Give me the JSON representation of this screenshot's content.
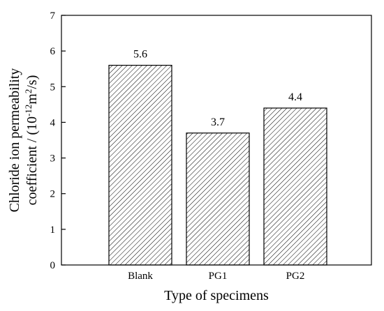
{
  "chart_data": {
    "type": "bar",
    "categories": [
      "Blank",
      "PG1",
      "PG2"
    ],
    "values": [
      5.6,
      3.7,
      4.4
    ],
    "data_labels": [
      "5.6",
      "3.7",
      "4.4"
    ],
    "title": "",
    "xlabel": "Type of specimens",
    "ylabel": {
      "line1": "Chloride ion permeability",
      "line2_pre": "coefficient / (10",
      "line2_sup1": "-12",
      "line2_mid": "m",
      "line2_sup2": "2",
      "line2_post": "/s)"
    },
    "ylim": [
      0,
      7
    ],
    "yticks": [
      "0",
      "1",
      "2",
      "3",
      "4",
      "5",
      "6",
      "7"
    ],
    "bar_fill": "hatched-diagonal",
    "bar_color": "#000000",
    "grid": false,
    "legend": "none"
  }
}
